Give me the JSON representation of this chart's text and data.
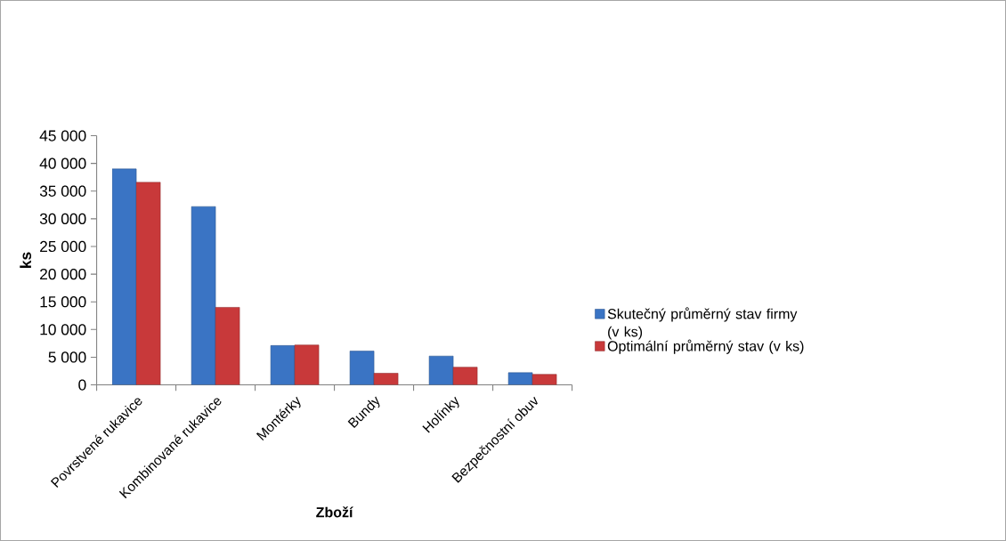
{
  "chart_data": {
    "type": "bar",
    "xlabel": "Zboží",
    "ylabel": "ks",
    "categories": [
      "Povrstvené rukavice",
      "Kombinované rukavice",
      "Montérky",
      "Bundy",
      "Holínky",
      "Bezpečnostní obuv"
    ],
    "series": [
      {
        "name": "Skutečný průměrný stav firmy (v ks)",
        "color": "#3a74c4",
        "values": [
          39000,
          32200,
          7100,
          6100,
          5200,
          2200
        ]
      },
      {
        "name": "Optimální průměrný stav (v ks)",
        "color": "#c8393a",
        "values": [
          36600,
          14000,
          7200,
          2100,
          3200,
          1900
        ]
      }
    ],
    "ylim": [
      0,
      45000
    ],
    "yticks": [
      {
        "value": 0,
        "label": "0"
      },
      {
        "value": 5000,
        "label": "5 000"
      },
      {
        "value": 10000,
        "label": "10 000"
      },
      {
        "value": 15000,
        "label": "15 000"
      },
      {
        "value": 20000,
        "label": "20 000"
      },
      {
        "value": 25000,
        "label": "25 000"
      },
      {
        "value": 30000,
        "label": "30 000"
      },
      {
        "value": 35000,
        "label": "35 000"
      },
      {
        "value": 40000,
        "label": "40 000"
      },
      {
        "value": 45000,
        "label": "45 000"
      }
    ],
    "legend": "right",
    "grid": false
  }
}
